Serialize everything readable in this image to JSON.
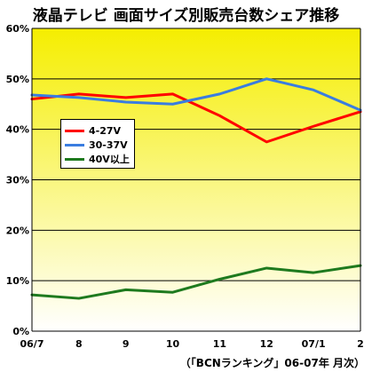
{
  "title": "液晶テレビ 画面サイズ別販売台数シェア推移",
  "source_note": "（「BCNランキング」06-07年 月次）",
  "chart_data": {
    "type": "line",
    "categories": [
      "06/7",
      "8",
      "9",
      "10",
      "11",
      "12",
      "07/1",
      "2"
    ],
    "ylim": [
      0,
      60
    ],
    "yticks": [
      0,
      10,
      20,
      30,
      40,
      50,
      60
    ],
    "ytick_labels": [
      "0%",
      "10%",
      "20%",
      "30%",
      "40%",
      "50%",
      "60%"
    ],
    "grid": true,
    "legend_position": "left",
    "series": [
      {
        "name": "4-27V",
        "color": "#ff0000",
        "values": [
          46.0,
          47.0,
          46.3,
          47.0,
          42.7,
          37.5,
          40.6,
          43.5
        ]
      },
      {
        "name": "30-37V",
        "color": "#3a7de0",
        "values": [
          46.8,
          46.3,
          45.4,
          45.0,
          47.0,
          50.0,
          47.8,
          43.8
        ]
      },
      {
        "name": "40V以上",
        "color": "#1e7a1e",
        "values": [
          7.2,
          6.5,
          8.2,
          7.7,
          10.3,
          12.5,
          11.6,
          13.0
        ]
      }
    ],
    "colors": {
      "background_top": "#f5ee00",
      "background_bottom": "#ffffff"
    }
  }
}
